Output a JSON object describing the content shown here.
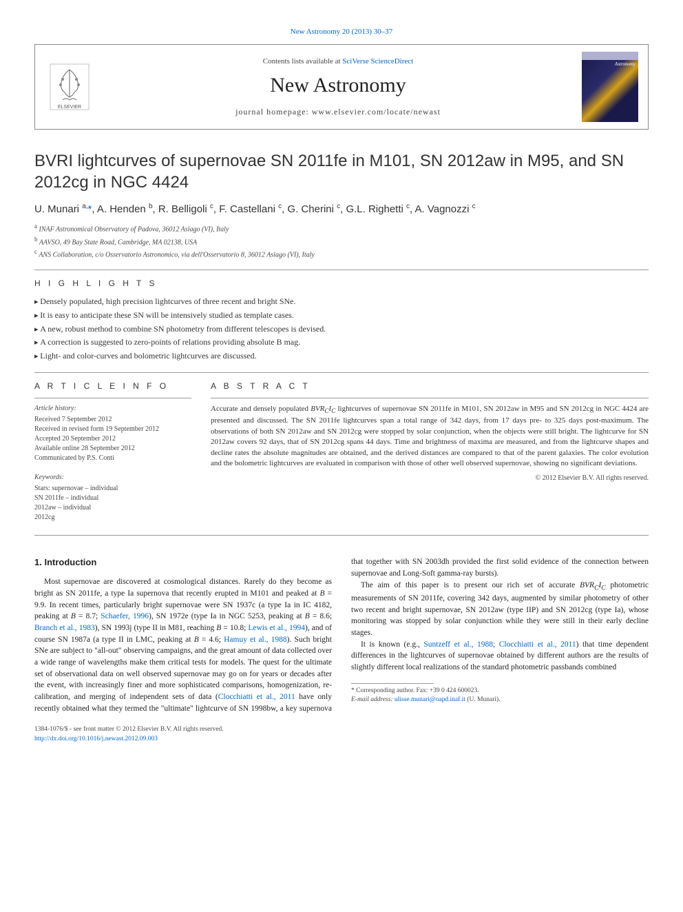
{
  "header": {
    "citation": "New Astronomy 20 (2013) 30–37",
    "contents_prefix": "Contents lists available at ",
    "contents_link": "SciVerse ScienceDirect",
    "journal_name": "New Astronomy",
    "homepage_prefix": "journal homepage: ",
    "homepage_url": "www.elsevier.com/locate/newast",
    "publisher": "ELSEVIER",
    "cover_label": "Astronomy"
  },
  "article": {
    "title": "BVRI lightcurves of supernovae SN 2011fe in M101, SN 2012aw in M95, and SN 2012cg in NGC 4424",
    "authors_html": "U. Munari <sup>a,</sup><span class=\"corr\">*</span>, A. Henden <sup>b</sup>, R. Belligoli <sup>c</sup>, F. Castellani <sup>c</sup>, G. Cherini <sup>c</sup>, G.L. Righetti <sup>c</sup>, A. Vagnozzi <sup>c</sup>",
    "affiliations": [
      {
        "sup": "a",
        "text": "INAF Astronomical Observatory of Padova, 36012 Asiago (VI), Italy"
      },
      {
        "sup": "b",
        "text": "AAVSO, 49 Bay State Road, Cambridge, MA 02138, USA"
      },
      {
        "sup": "c",
        "text": "ANS Collaboration, c/o Osservatorio Astronomico, via dell'Osservatorio 8, 36012 Asiago (VI), Italy"
      }
    ]
  },
  "highlights": {
    "label": "H I G H L I G H T S",
    "items": [
      "Densely populated, high precision lightcurves of three recent and bright SNe.",
      "It is easy to anticipate these SN will be intensively studied as template cases.",
      "A new, robust method to combine SN photometry from different telescopes is devised.",
      "A correction is suggested to zero-points of relations providing absolute B mag.",
      "Light- and color-curves and bolometric lightcurves are discussed."
    ]
  },
  "info": {
    "label": "A R T I C L E   I N F O",
    "history_hdr": "Article history:",
    "history": [
      "Received 7 September 2012",
      "Received in revised form 19 September 2012",
      "Accepted 20 September 2012",
      "Available online 28 September 2012",
      "Communicated by P.S. Conti"
    ],
    "keywords_hdr": "Keywords:",
    "keywords": [
      "Stars: supernovae – individual",
      "SN 2011fe – individual",
      "2012aw – individual",
      "2012cg"
    ]
  },
  "abstract": {
    "label": "A B S T R A C T",
    "text_html": "Accurate and densely populated <i>BVR<sub>C</sub>I<sub>C</sub></i> lightcurves of supernovae SN 2011fe in M101, SN 2012aw in M95 and SN 2012cg in NGC 4424 are presented and discussed. The SN 2011fe lightcurves span a total range of 342 days, from 17 days pre- to 325 days post-maximum. The observations of both SN 2012aw and SN 2012cg were stopped by solar conjunction, when the objects were still bright. The lightcurve for SN 2012aw covers 92 days, that of SN 2012cg spans 44 days. Time and brightness of maxima are measured, and from the lightcurve shapes and decline rates the absolute magnitudes are obtained, and the derived distances are compared to that of the parent galaxies. The color evolution and the bolometric lightcurves are evaluated in comparison with those of other well observed supernovae, showing no significant deviations.",
    "copyright": "© 2012 Elsevier B.V. All rights reserved."
  },
  "body": {
    "heading": "1. Introduction",
    "paras_html": [
      "Most supernovae are discovered at cosmological distances. Rarely do they become as bright as SN 2011fe, a type Ia supernova that recently erupted in M101 and peaked at <i>B</i> = 9.9. In recent times, particularly bright supernovae were SN 1937c (a type Ia in IC 4182, peaking at <i>B</i> = 8.7; <a>Schaefer, 1996</a>), SN 1972e (type Ia in NGC 5253, peaking at <i>B</i> = 8.6; <a>Branch et al., 1983</a>), SN 1993j (type II in M81, reaching <i>B</i> = 10.8; <a>Lewis et al., 1994</a>), and of course SN 1987a (a type II in LMC, peaking at <i>B</i> = 4.6; <a>Hamuy et al., 1988</a>). Such bright SNe are subject to \"all-out\" observing campaigns, and the great amount of data collected over a wide range of wavelengths make them critical tests for models. The quest for the ultimate set of observational data on well observed supernovae may go on for years or decades after the event, with increasingly finer and more sophisticated comparisons, homogenization, re-calibration, and merging of independent sets of data (<a>Clocchiatti et al., 2011</a> have only recently obtained what they termed the \"ultimate\" lightcurve of SN 1998bw, a key supernova that together with SN 2003dh provided the first solid evidence of the connection between supernovae and Long-Soft gamma-ray bursts).",
      "The aim of this paper is to present our rich set of accurate <i>BVR<sub>C</sub>I<sub>C</sub></i> photometric measurements of SN 2011fe, covering 342 days, augmented by similar photometry of other two recent and bright supernovae, SN 2012aw (type IIP) and SN 2012cg (type Ia), whose monitoring was stopped by solar conjunction while they were still in their early decline stages.",
      "It is known (e.g., <a>Suntzeff et al., 1988; Clocchiatti et al., 2011</a>) that time dependent differences in the lightcurves of supernovae obtained by different authors are the results of slightly different local realizations of the standard photometric passbands combined"
    ]
  },
  "footnotes": {
    "corr_label": "* Corresponding author. Fax: +39 0 424 600023.",
    "email_label": "E-mail address: ",
    "email": "ulisse.munari@oapd.inaf.it",
    "email_suffix": " (U. Munari)."
  },
  "footer": {
    "line1": "1384-1076/$ - see front matter © 2012 Elsevier B.V. All rights reserved.",
    "doi": "http://dx.doi.org/10.1016/j.newast.2012.09.003"
  },
  "colors": {
    "link": "#0066cc",
    "text": "#222222",
    "muted": "#444444",
    "rule": "#999999"
  }
}
